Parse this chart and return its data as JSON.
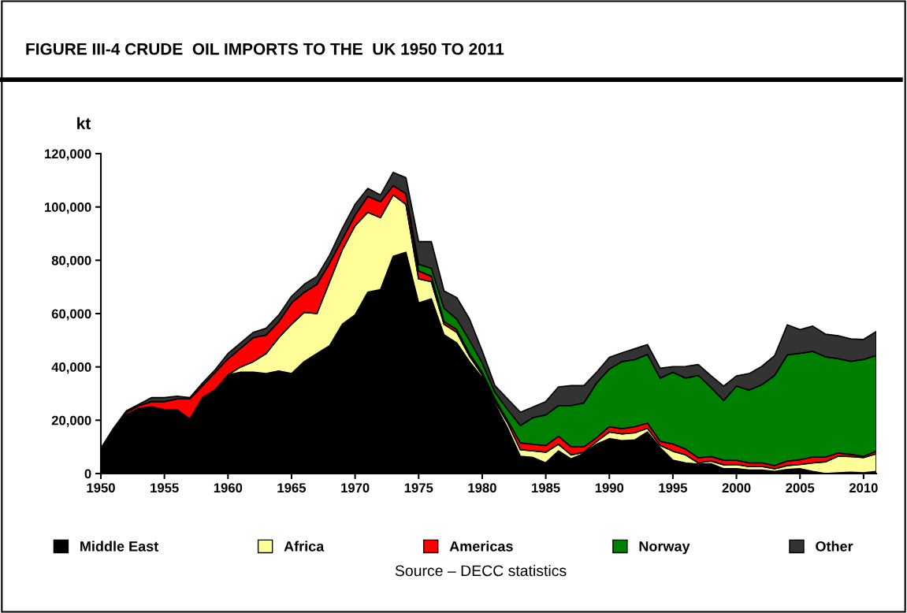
{
  "chart_data": {
    "type": "area",
    "stacked": true,
    "title": "FIGURE III-4 CRUDE  OIL IMPORTS TO THE  UK 1950 TO 2011",
    "ylabel": "kt",
    "x": [
      1950,
      1951,
      1952,
      1953,
      1954,
      1955,
      1956,
      1957,
      1958,
      1959,
      1960,
      1961,
      1962,
      1963,
      1964,
      1965,
      1966,
      1967,
      1968,
      1969,
      1970,
      1971,
      1972,
      1973,
      1974,
      1975,
      1976,
      1977,
      1978,
      1979,
      1980,
      1981,
      1982,
      1983,
      1984,
      1985,
      1986,
      1987,
      1988,
      1989,
      1990,
      1991,
      1992,
      1993,
      1994,
      1995,
      1996,
      1997,
      1998,
      1999,
      2000,
      2001,
      2002,
      2003,
      2004,
      2005,
      2006,
      2007,
      2008,
      2009,
      2010,
      2011
    ],
    "series": [
      {
        "name": "Middle East",
        "color": "#000000",
        "values": [
          8000,
          16000,
          22000,
          24500,
          25000,
          24000,
          24000,
          20500,
          28500,
          31500,
          37000,
          38000,
          38000,
          37500,
          38500,
          37500,
          42000,
          45000,
          48000,
          56000,
          59500,
          68000,
          69000,
          81500,
          83000,
          64000,
          65500,
          52000,
          49000,
          42000,
          36000,
          26000,
          17000,
          6500,
          6000,
          4000,
          8500,
          5500,
          7500,
          11000,
          13100,
          12300,
          12600,
          15600,
          9700,
          5000,
          4000,
          3500,
          3700,
          1800,
          1800,
          1300,
          1300,
          800,
          1500,
          1800,
          800,
          0,
          300,
          500,
          300,
          800
        ]
      },
      {
        "name": "Africa",
        "color": "#ffff99",
        "values": [
          0,
          0,
          0,
          0,
          0,
          0,
          0,
          0,
          0,
          0,
          0,
          2000,
          4000,
          7500,
          12500,
          18500,
          18500,
          15000,
          24000,
          28000,
          33500,
          30000,
          27000,
          23000,
          18000,
          9000,
          6500,
          4000,
          4000,
          2000,
          1000,
          1000,
          2000,
          2500,
          2500,
          4000,
          2500,
          1500,
          500,
          1000,
          2500,
          2600,
          2700,
          1400,
          900,
          3400,
          3000,
          500,
          1000,
          1500,
          1600,
          1300,
          1400,
          1000,
          1500,
          1600,
          3200,
          4400,
          6200,
          5900,
          5700,
          6600
        ]
      },
      {
        "name": "Americas",
        "color": "#ff0000",
        "values": [
          1000,
          500,
          1000,
          1000,
          2000,
          3000,
          4000,
          7500,
          4500,
          6500,
          6000,
          7000,
          9000,
          7000,
          6000,
          8000,
          7500,
          11000,
          7000,
          4000,
          4000,
          6000,
          6000,
          3500,
          4000,
          3000,
          2000,
          1000,
          1000,
          1000,
          1000,
          1000,
          1000,
          2500,
          2500,
          2500,
          3000,
          3000,
          2000,
          1500,
          2000,
          1900,
          2300,
          1900,
          1500,
          2700,
          2200,
          1900,
          1700,
          1700,
          1600,
          1400,
          1300,
          1200,
          1700,
          1800,
          2200,
          1800,
          1200,
          800,
          500,
          1000
        ]
      },
      {
        "name": "Norway",
        "color": "#008000",
        "values": [
          0,
          0,
          0,
          0,
          0,
          0,
          0,
          0,
          0,
          0,
          0,
          0,
          0,
          0,
          0,
          0,
          0,
          0,
          0,
          0,
          0,
          0,
          0,
          0,
          0,
          2500,
          3000,
          5000,
          4000,
          5000,
          3500,
          2500,
          4000,
          6500,
          10000,
          11500,
          11500,
          15500,
          16500,
          20500,
          21600,
          25200,
          25100,
          25800,
          23700,
          26900,
          26600,
          30900,
          25900,
          22400,
          27800,
          27300,
          29300,
          33800,
          39800,
          39900,
          39600,
          37600,
          35400,
          34900,
          36300,
          35900
        ]
      },
      {
        "name": "Other",
        "color": "#333333",
        "values": [
          500,
          500,
          500,
          500,
          1500,
          1500,
          1000,
          500,
          1000,
          1000,
          2000,
          2000,
          2000,
          2500,
          2500,
          2500,
          3000,
          3000,
          3000,
          4000,
          4000,
          3000,
          2500,
          5000,
          6000,
          8500,
          10000,
          6500,
          8000,
          8000,
          4500,
          2500,
          4000,
          5000,
          4000,
          5000,
          7000,
          7500,
          6500,
          4000,
          4400,
          3300,
          4100,
          3700,
          3700,
          2100,
          4400,
          4100,
          4400,
          5400,
          3800,
          6200,
          6900,
          7400,
          11300,
          8900,
          9500,
          8500,
          8600,
          8400,
          7500,
          9000
        ]
      }
    ],
    "xlim": [
      1950,
      2011
    ],
    "xticks": [
      1950,
      1955,
      1960,
      1965,
      1970,
      1975,
      1980,
      1985,
      1990,
      1995,
      2000,
      2005,
      2010
    ],
    "ylim": [
      0,
      120000
    ],
    "yticks": [
      0,
      {
        "value": 20000,
        "label": "20,000"
      },
      {
        "value": 40000,
        "label": "40,000"
      },
      {
        "value": 60000,
        "label": "60,000"
      },
      {
        "value": 80000,
        "label": "80,000"
      },
      {
        "value": 100000,
        "label": "100,000"
      },
      {
        "value": 120000,
        "label": "120,000"
      }
    ],
    "grid": false,
    "legend": "bottom",
    "annotations": [
      "Source – DECC statistics"
    ]
  }
}
